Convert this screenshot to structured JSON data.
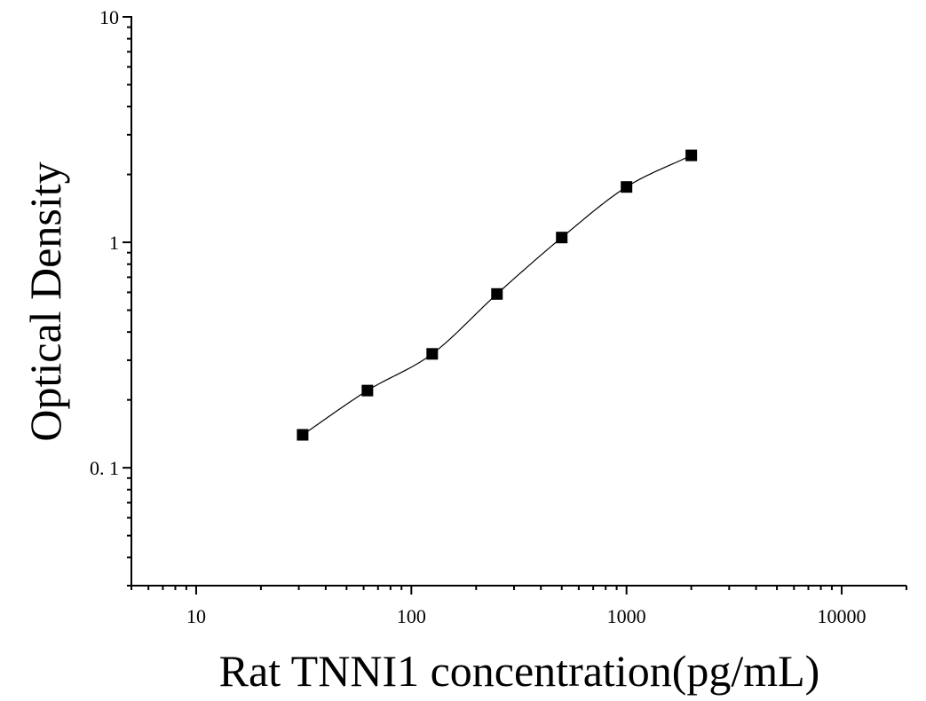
{
  "chart_data": {
    "type": "scatter",
    "title": "",
    "xlabel": "Rat TNNI1 concentration(pg/mL)",
    "ylabel": "Optical Density",
    "x_scale": "log",
    "y_scale": "log",
    "xlim": [
      5,
      20000
    ],
    "ylim": [
      0.03,
      10
    ],
    "x_ticks": [
      {
        "value": 10,
        "label": "10"
      },
      {
        "value": 100,
        "label": "100"
      },
      {
        "value": 1000,
        "label": "1000"
      },
      {
        "value": 10000,
        "label": "10000"
      }
    ],
    "y_ticks": [
      {
        "value": 0.1,
        "label": "0. 1"
      },
      {
        "value": 1,
        "label": "1"
      },
      {
        "value": 10,
        "label": "10"
      }
    ],
    "grid": false,
    "legend": "none",
    "series": [
      {
        "x": [
          31.25,
          62.5,
          125,
          250,
          500,
          1000,
          2000
        ],
        "y": [
          0.14,
          0.22,
          0.32,
          0.59,
          1.05,
          1.76,
          2.43
        ],
        "marker": "square",
        "fit_line": true
      }
    ],
    "colors": {
      "marker": "#000000",
      "line": "#000000",
      "axis": "#000000"
    }
  }
}
